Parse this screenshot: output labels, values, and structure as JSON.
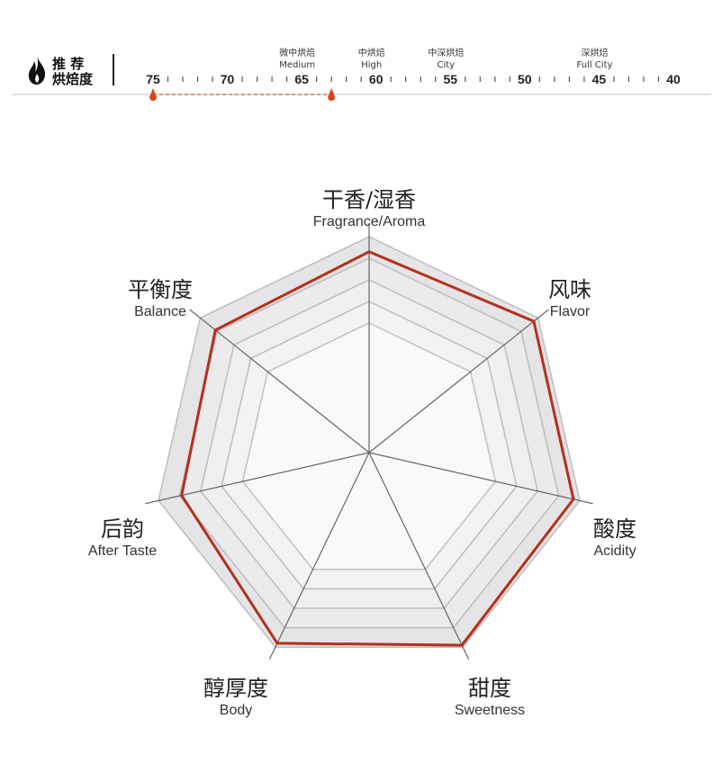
{
  "roast": {
    "title_line1": "推 荐",
    "title_line2": "烘焙度",
    "icon": "flame-icon",
    "scale_ticks": [
      "75",
      "70",
      "65",
      "60",
      "55",
      "50",
      "45",
      "40"
    ],
    "scale_range": [
      75,
      40
    ],
    "levels": [
      {
        "cn": "微中烘焙",
        "en": "Medium",
        "at": 65.3
      },
      {
        "cn": "中烘焙",
        "en": "High",
        "at": 60.3
      },
      {
        "cn": "中深烘焙",
        "en": "City",
        "at": 55.3
      },
      {
        "cn": "深烘焙",
        "en": "Full City",
        "at": 45.3
      }
    ],
    "recommended_range": [
      75,
      63
    ],
    "accent_color": "#d9441a"
  },
  "chart_data": {
    "type": "radar",
    "axes": [
      {
        "cn": "干香/湿香",
        "en": "Fragrance/Aroma"
      },
      {
        "cn": "风味",
        "en": "Flavor"
      },
      {
        "cn": "酸度",
        "en": "Acidity"
      },
      {
        "cn": "甜度",
        "en": "Sweetness"
      },
      {
        "cn": "醇厚度",
        "en": "Body"
      },
      {
        "cn": "后韵",
        "en": "After Taste"
      },
      {
        "cn": "平衡度",
        "en": "Balance"
      }
    ],
    "values": [
      9.3,
      9.75,
      9.7,
      9.9,
      9.8,
      8.9,
      9.1
    ],
    "range": [
      0,
      10
    ],
    "rings": [
      6,
      7,
      8,
      9,
      10
    ],
    "series_color": "#b5301a"
  }
}
